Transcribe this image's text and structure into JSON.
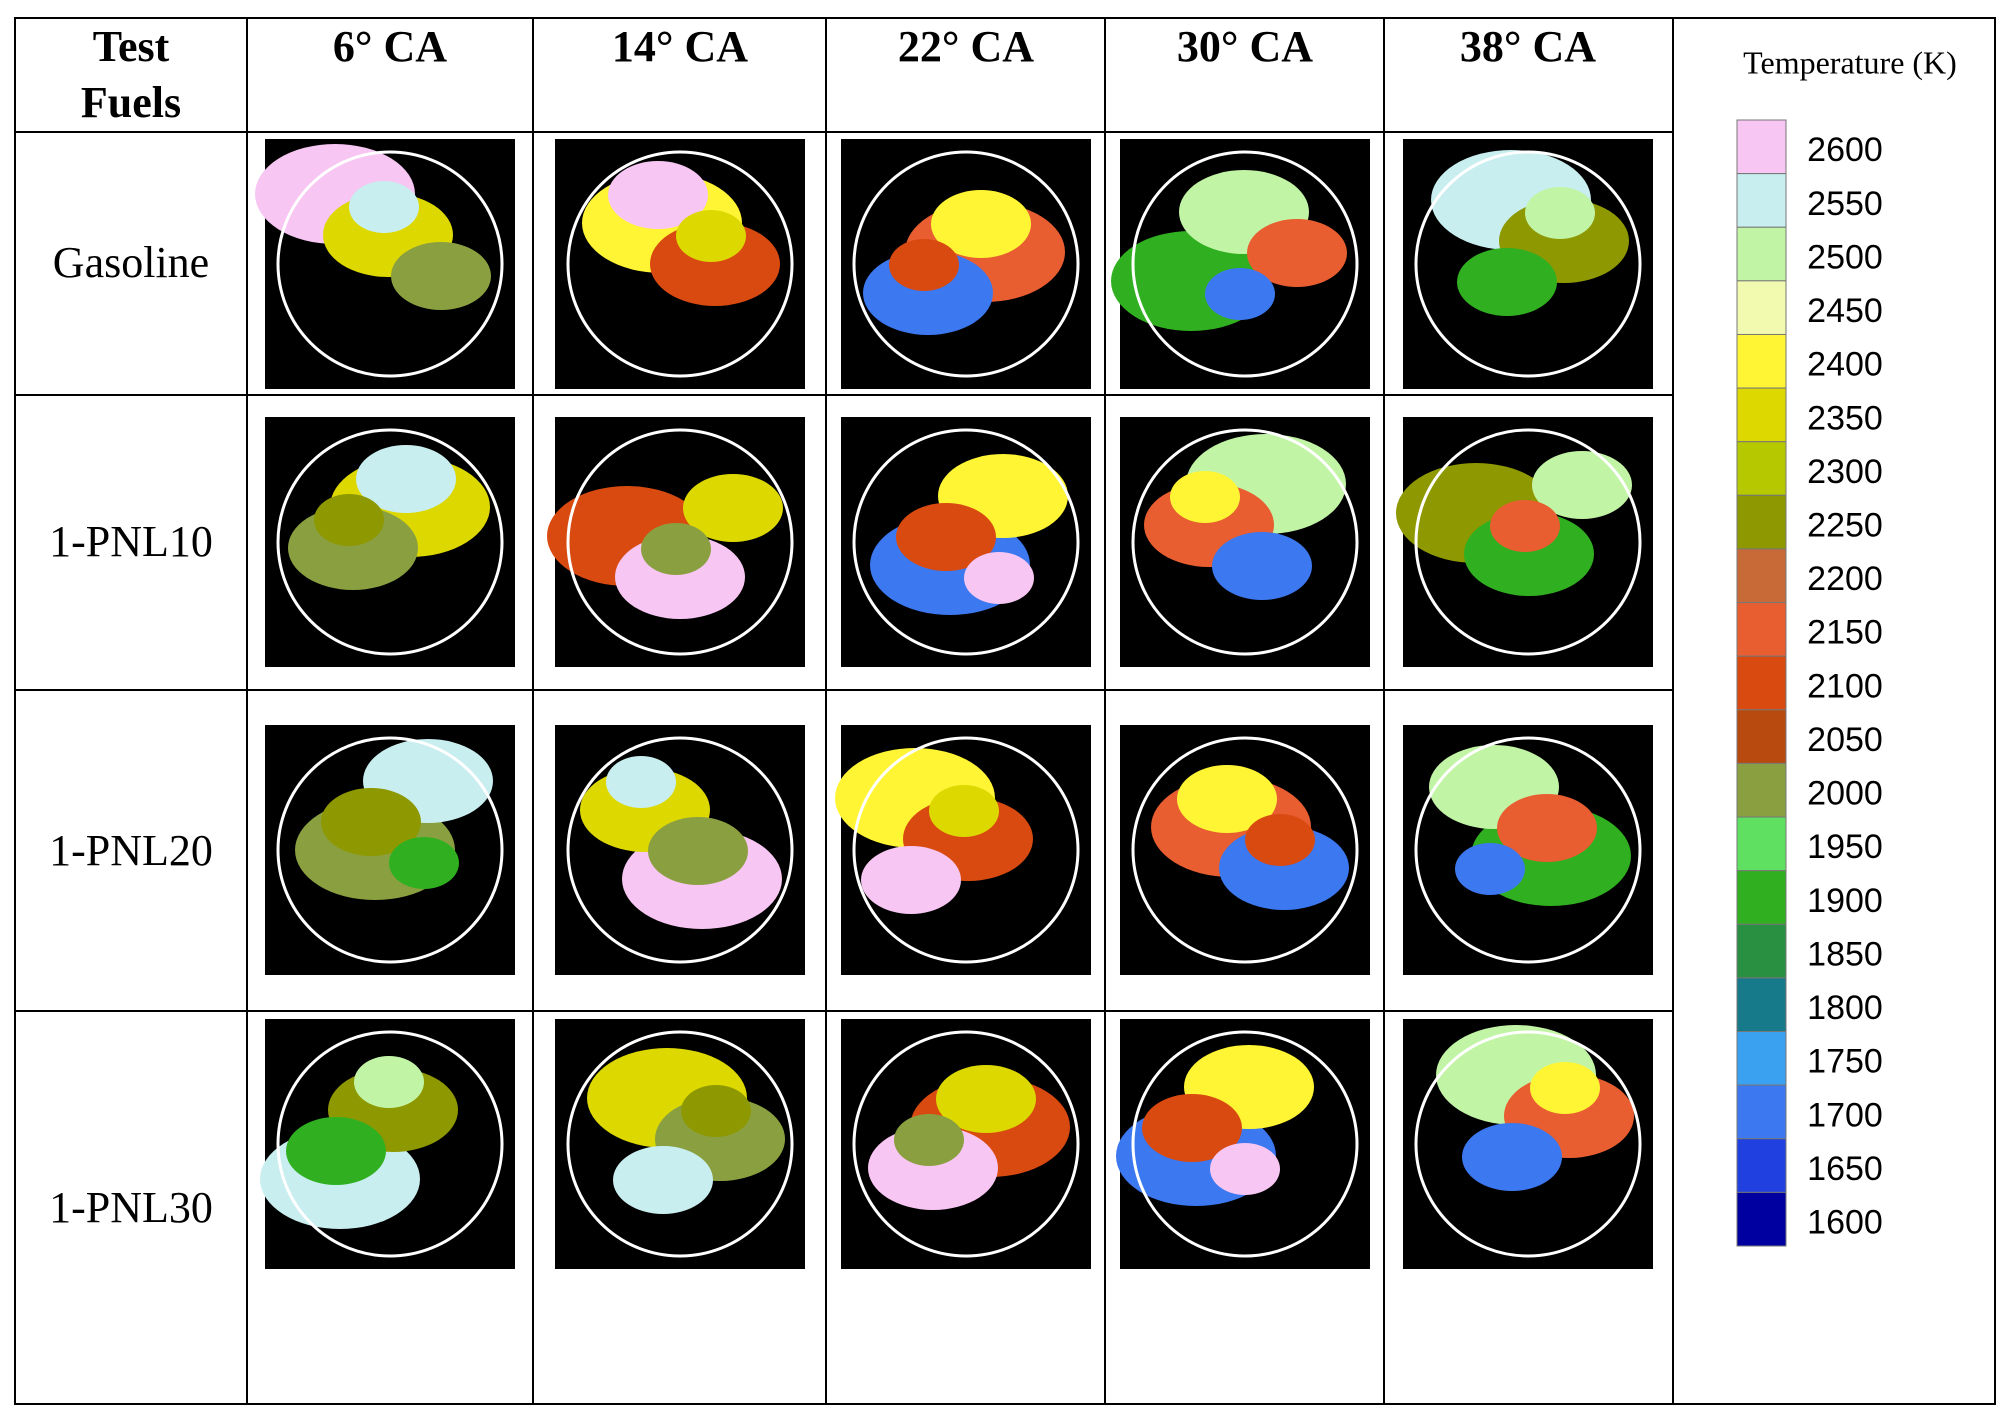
{
  "header": {
    "corner": [
      "Test",
      "Fuels"
    ],
    "columns": [
      "6° CA",
      "14° CA",
      "22° CA",
      "30° CA",
      "38° CA"
    ]
  },
  "rows": [
    "Gasoline",
    "1-PNL10",
    "1-PNL20",
    "1-PNL30"
  ],
  "legend": {
    "title": "Temperature (K)",
    "levels": [
      {
        "value": 2600,
        "color": "#f7c6f2"
      },
      {
        "value": 2550,
        "color": "#c9eef0"
      },
      {
        "value": 2500,
        "color": "#c2f4a6"
      },
      {
        "value": 2450,
        "color": "#f2fab0"
      },
      {
        "value": 2400,
        "color": "#fff535"
      },
      {
        "value": 2350,
        "color": "#ddd800"
      },
      {
        "value": 2300,
        "color": "#b5c800"
      },
      {
        "value": 2250,
        "color": "#8e9800"
      },
      {
        "value": 2200,
        "color": "#c86a38"
      },
      {
        "value": 2150,
        "color": "#e85e30"
      },
      {
        "value": 2100,
        "color": "#d84a10"
      },
      {
        "value": 2050,
        "color": "#b84a10"
      },
      {
        "value": 2000,
        "color": "#8aa040"
      },
      {
        "value": 1950,
        "color": "#60e060"
      },
      {
        "value": 1900,
        "color": "#30b020"
      },
      {
        "value": 1850,
        "color": "#289040"
      },
      {
        "value": 1800,
        "color": "#167a8a"
      },
      {
        "value": 1750,
        "color": "#3aa0f0"
      },
      {
        "value": 1700,
        "color": "#3c78f0"
      },
      {
        "value": 1650,
        "color": "#2040e0"
      },
      {
        "value": 1600,
        "color": "#0000a0"
      }
    ]
  }
}
